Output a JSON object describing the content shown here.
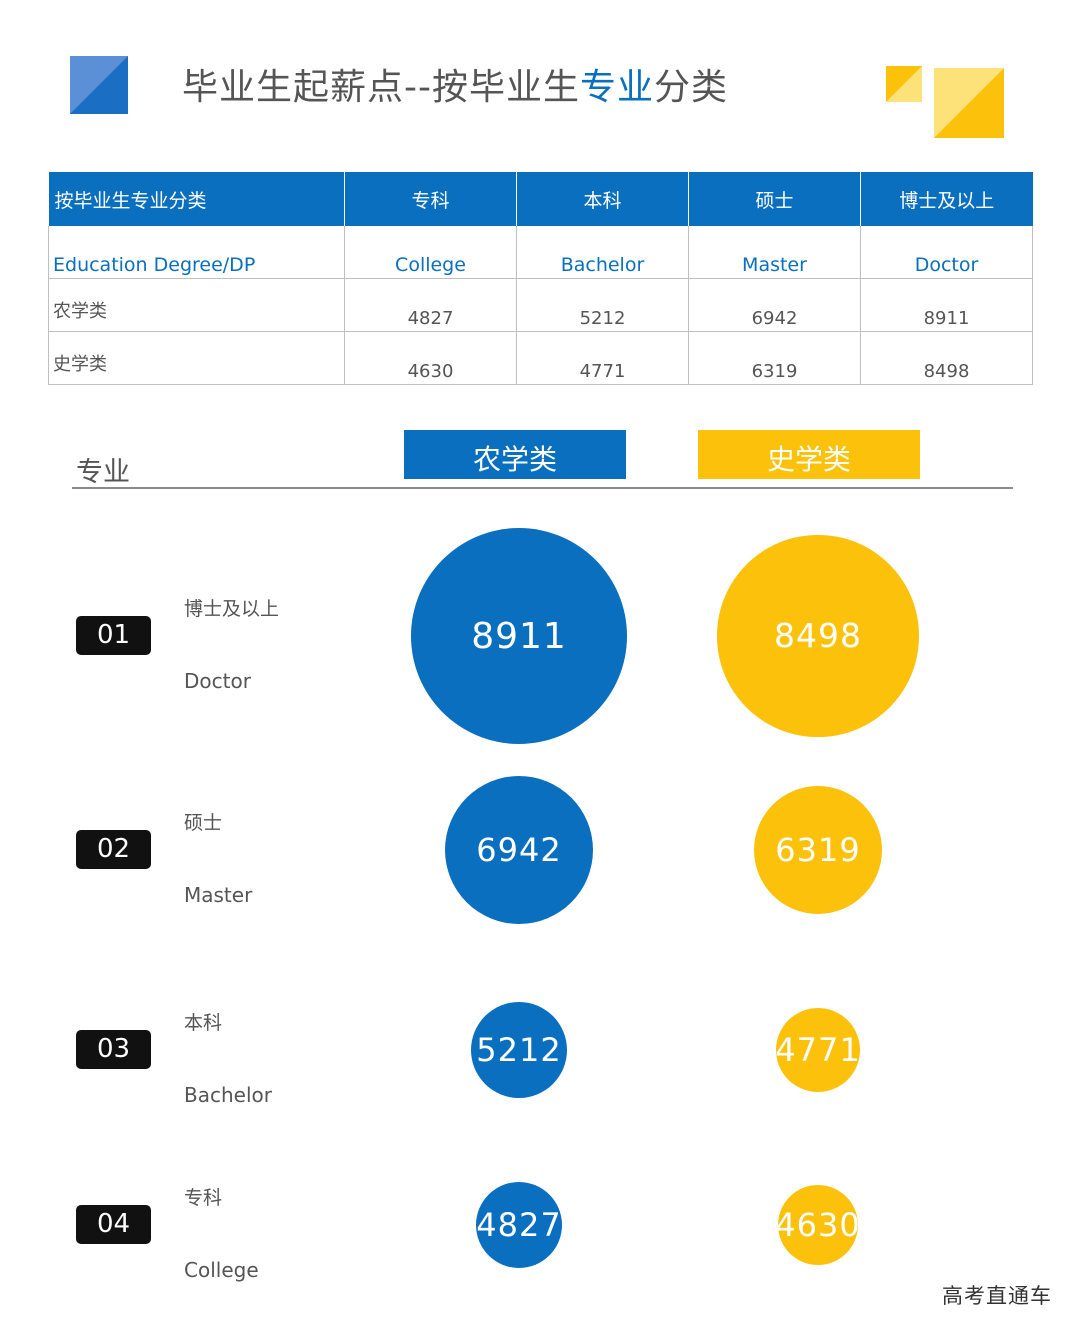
{
  "header": {
    "title_prefix": "毕业生起薪点--按毕业生",
    "title_highlight": "专业",
    "title_suffix": "分类"
  },
  "table": {
    "header": [
      "按毕业生专业分类",
      "专科",
      "本科",
      "硕士",
      "博士及以上"
    ],
    "subheader": [
      "Education  Degree/DP",
      "College",
      "Bachelor",
      "Master",
      "Doctor"
    ],
    "rows": [
      [
        "农学类",
        "4827",
        "5212",
        "6942",
        "8911"
      ],
      [
        "史学类",
        "4630",
        "4771",
        "6319",
        "8498"
      ]
    ]
  },
  "chart_labels": {
    "axis_label": "专业"
  },
  "chart_data": {
    "type": "bubble",
    "series": [
      {
        "name": "农学类",
        "color": "#0a6fbf",
        "values": [
          8911,
          6942,
          5212,
          4827
        ]
      },
      {
        "name": "史学类",
        "color": "#fcc20b",
        "values": [
          8498,
          6319,
          4771,
          4630
        ]
      }
    ],
    "categories": [
      {
        "num": "01",
        "cn": "博士及以上",
        "en": "Doctor"
      },
      {
        "num": "02",
        "cn": "硕士",
        "en": "Master"
      },
      {
        "num": "03",
        "cn": "本科",
        "en": "Bachelor"
      },
      {
        "num": "04",
        "cn": "专科",
        "en": "College"
      }
    ]
  },
  "watermark": "高考直通车",
  "colors": {
    "blue": "#0a6fbf",
    "yellow": "#fcc20b"
  }
}
